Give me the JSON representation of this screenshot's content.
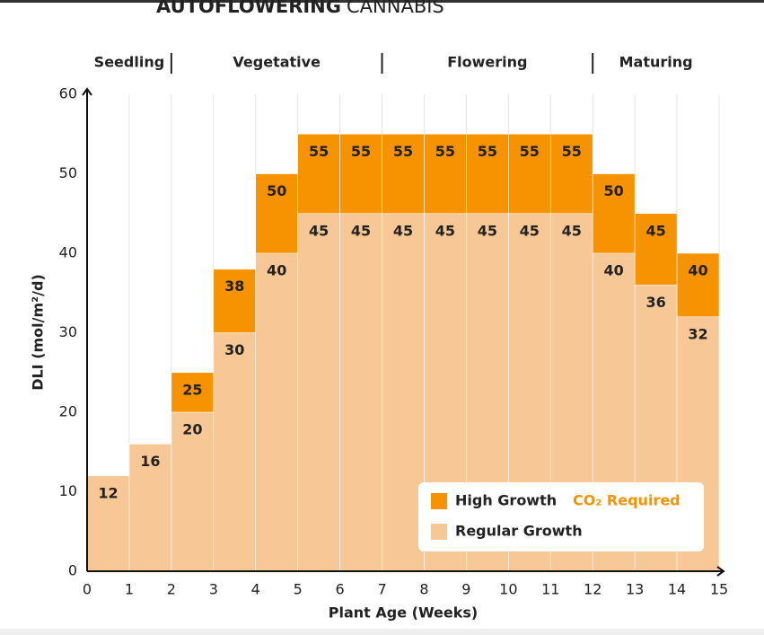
{
  "chart_data": {
    "type": "bar",
    "title_bold": "AUTOFLOWERING",
    "title_light": "CANNABIS",
    "x_label": "Plant Age (Weeks)",
    "y_label": "DLI (mol/m²/d)",
    "xlim": [
      0,
      15
    ],
    "xticks": [
      0,
      1,
      2,
      3,
      4,
      5,
      6,
      7,
      8,
      9,
      10,
      11,
      12,
      13,
      14,
      15
    ],
    "ylim": [
      0,
      60
    ],
    "yticks": [
      0,
      10,
      20,
      30,
      40,
      50,
      60
    ],
    "grid": true,
    "phases": [
      {
        "name": "Seedling",
        "start": 0,
        "end": 2
      },
      {
        "name": "Vegetative",
        "start": 2,
        "end": 7
      },
      {
        "name": "Flowering",
        "start": 7,
        "end": 12
      },
      {
        "name": "Maturing",
        "start": 12,
        "end": 15
      }
    ],
    "legend_position": "lower right",
    "legend_note": "CO₂ Required",
    "series": [
      {
        "name": "High Growth",
        "color": "#f79200",
        "values": [
          null,
          null,
          25,
          38,
          50,
          55,
          55,
          55,
          55,
          55,
          55,
          55,
          50,
          45,
          40
        ]
      },
      {
        "name": "Regular Growth",
        "color": "#f8c796",
        "values": [
          12,
          16,
          20,
          30,
          40,
          45,
          45,
          45,
          45,
          45,
          45,
          45,
          40,
          36,
          32
        ]
      }
    ]
  }
}
